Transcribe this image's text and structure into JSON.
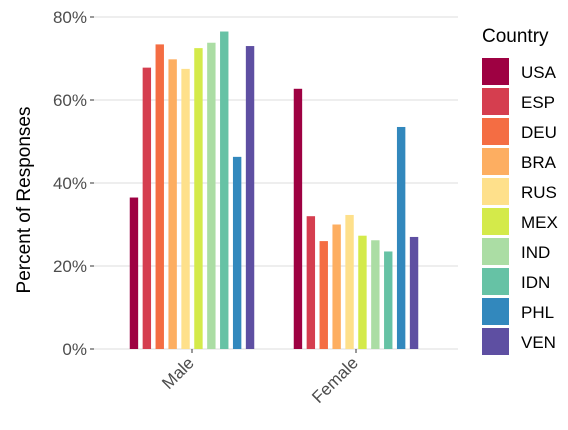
{
  "chart_data": {
    "type": "bar",
    "categories": [
      "Male",
      "Female"
    ],
    "ylabel": "Percent of Responses",
    "ylim": [
      0,
      80
    ],
    "yticks": [
      "0%",
      "20%",
      "40%",
      "60%",
      "80%"
    ],
    "ytick_values": [
      0,
      20,
      40,
      60,
      80
    ],
    "grid": true,
    "legend": {
      "title": "Country",
      "placement": "right"
    },
    "series": [
      {
        "name": "USA",
        "color": "#9E0142",
        "values": [
          36.5,
          62.7
        ]
      },
      {
        "name": "ESP",
        "color": "#D53E4F",
        "values": [
          67.8,
          32.0
        ]
      },
      {
        "name": "DEU",
        "color": "#F46D43",
        "values": [
          73.4,
          26.0
        ]
      },
      {
        "name": "BRA",
        "color": "#FDAE61",
        "values": [
          69.8,
          30.0
        ]
      },
      {
        "name": "RUS",
        "color": "#FEE08B",
        "values": [
          67.5,
          32.3
        ]
      },
      {
        "name": "MEX",
        "color": "#D4EA4A",
        "values": [
          72.5,
          27.3
        ]
      },
      {
        "name": "IND",
        "color": "#ABDDA4",
        "values": [
          73.8,
          26.2
        ]
      },
      {
        "name": "IDN",
        "color": "#66C2A5",
        "values": [
          76.5,
          23.5
        ]
      },
      {
        "name": "PHL",
        "color": "#3288BD",
        "values": [
          46.3,
          53.5
        ]
      },
      {
        "name": "VEN",
        "color": "#5E4FA2",
        "values": [
          73.0,
          27.0
        ]
      }
    ]
  }
}
